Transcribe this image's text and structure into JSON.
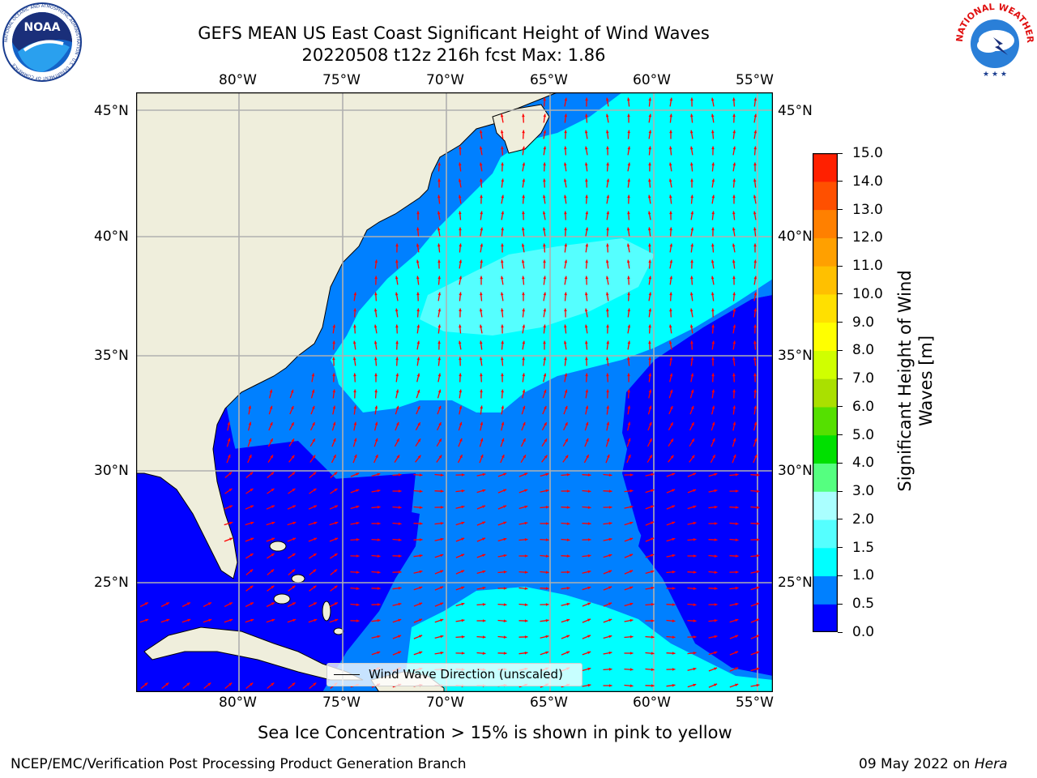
{
  "title_line1": "GEFS MEAN US East Coast Significant Height of Wind Waves",
  "title_line2": "20220508 t12z 216h fcst   Max: 1.86",
  "subtitle_bottom": "Sea Ice Concentration > 15% is shown in pink to yellow",
  "footer_left": "NCEP/EMC/Verification Post Processing Product Generation Branch",
  "footer_right_date": "09 May 2022 on ",
  "footer_right_host": "Hera",
  "legend_label": "Wind Wave Direction (unscaled)",
  "colorbar": {
    "label_line1": "Significant Height of Wind",
    "label_line2": "Waves [m]",
    "ticks": [
      "15.0",
      "14.0",
      "13.0",
      "12.0",
      "11.0",
      "10.0",
      "9.0",
      "8.0",
      "7.0",
      "6.0",
      "5.0",
      "4.0",
      "3.0",
      "2.0",
      "1.5",
      "1.0",
      "0.5",
      "0.0"
    ],
    "colors": [
      "#0000ff",
      "#0080ff",
      "#00ffff",
      "#55ffff",
      "#aaffff",
      "#55ff80",
      "#00e000",
      "#55e000",
      "#aae000",
      "#d0ff00",
      "#ffff00",
      "#ffe000",
      "#ffc000",
      "#ffa000",
      "#ff8000",
      "#ff5000",
      "#ff2000"
    ]
  },
  "map": {
    "lon_labels": [
      "80°W",
      "75°W",
      "70°W",
      "65°W",
      "60°W",
      "55°W"
    ],
    "lat_labels": [
      "45°N",
      "40°N",
      "35°N",
      "30°N",
      "25°N"
    ],
    "land_color": "#efeedc",
    "arrow_color": "#ff0000",
    "grid_color": "#b0b0b0"
  },
  "logos": {
    "noaa_text": "NOAA",
    "noaa_ring": "NATIONAL OCEANIC AND ATMOSPHERIC ADMINISTRATION · U.S. DEPARTMENT OF COMMERCE",
    "nws_ring": "NATIONAL WEATHER SERVICE"
  },
  "chart_data": {
    "type": "heatmap",
    "title": "GEFS MEAN US East Coast Significant Height of Wind Waves",
    "xlabel": "",
    "ylabel": "",
    "xlim": [
      -85,
      -54
    ],
    "ylim": [
      20.5,
      46
    ],
    "colorbar_levels": [
      0.0,
      0.5,
      1.0,
      1.5,
      2.0,
      3.0,
      4.0,
      5.0,
      6.0,
      7.0,
      8.0,
      9.0,
      10.0,
      11.0,
      12.0,
      13.0,
      14.0,
      15.0
    ],
    "max_value": 1.86
  }
}
